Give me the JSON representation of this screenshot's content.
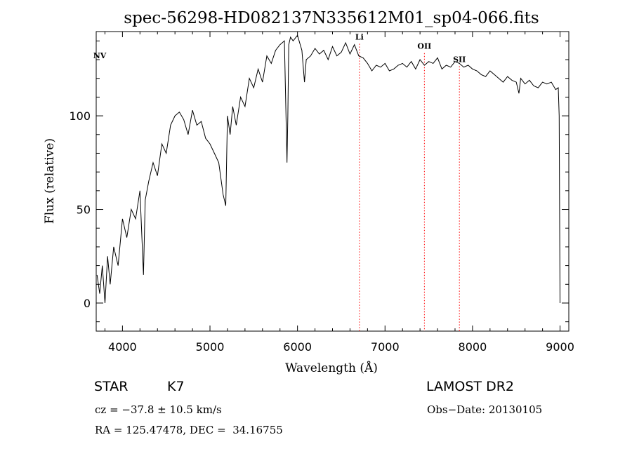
{
  "chart_data": {
    "type": "line",
    "title": "spec-56298-HD082137N335612M01_sp04-066.fits",
    "xlabel": "Wavelength (Å)",
    "ylabel": "Flux (relative)",
    "xlim": [
      3700,
      9100
    ],
    "ylim": [
      -15,
      145
    ],
    "x_ticks": [
      4000,
      5000,
      6000,
      7000,
      8000,
      9000
    ],
    "y_ticks": [
      0,
      50,
      100
    ],
    "grid": false,
    "line_color": "#000000",
    "marker_color": "#ff0000",
    "series": [
      {
        "x": [
          3710,
          3740,
          3770,
          3800,
          3830,
          3860,
          3900,
          3950,
          4000,
          4050,
          4100,
          4150,
          4200,
          4240,
          4260,
          4300,
          4350,
          4400,
          4450,
          4500,
          4550,
          4600,
          4650,
          4700,
          4750,
          4800,
          4850,
          4900,
          4950,
          5000,
          5050,
          5100,
          5150,
          5180,
          5200,
          5230,
          5260,
          5300,
          5350,
          5400,
          5450,
          5500,
          5550,
          5600,
          5650,
          5700,
          5750,
          5800,
          5850,
          5880,
          5890,
          5900,
          5920,
          5950,
          6000,
          6050,
          6080,
          6100,
          6150,
          6200,
          6250,
          6300,
          6350,
          6400,
          6450,
          6500,
          6550,
          6600,
          6650,
          6700,
          6750,
          6800,
          6850,
          6900,
          6950,
          7000,
          7050,
          7100,
          7150,
          7200,
          7250,
          7300,
          7350,
          7400,
          7450,
          7500,
          7550,
          7600,
          7650,
          7700,
          7750,
          7800,
          7850,
          7900,
          7950,
          8000,
          8050,
          8100,
          8150,
          8200,
          8250,
          8300,
          8350,
          8400,
          8450,
          8500,
          8530,
          8550,
          8600,
          8650,
          8700,
          8750,
          8800,
          8850,
          8900,
          8950,
          8980,
          8990,
          9000
        ],
        "y": [
          15,
          5,
          20,
          0,
          25,
          10,
          30,
          20,
          45,
          35,
          50,
          45,
          60,
          15,
          55,
          65,
          75,
          68,
          85,
          80,
          95,
          100,
          102,
          98,
          90,
          103,
          95,
          97,
          88,
          85,
          80,
          75,
          58,
          52,
          100,
          90,
          105,
          95,
          110,
          105,
          120,
          115,
          125,
          118,
          132,
          128,
          135,
          138,
          140,
          75,
          100,
          138,
          142,
          140,
          143,
          135,
          118,
          130,
          132,
          136,
          133,
          135,
          130,
          137,
          132,
          134,
          139,
          133,
          138,
          132,
          131,
          128,
          124,
          127,
          126,
          128,
          124,
          125,
          127,
          128,
          126,
          129,
          125,
          130,
          127,
          129,
          128,
          131,
          125,
          127,
          126,
          129,
          128,
          126,
          127,
          125,
          124,
          122,
          121,
          124,
          122,
          120,
          118,
          121,
          119,
          118,
          112,
          120,
          117,
          119,
          116,
          115,
          118,
          117,
          118,
          114,
          115,
          100,
          0
        ]
      }
    ],
    "lines": [
      {
        "label": "NV",
        "x": 3740,
        "y": 130,
        "marker": false
      },
      {
        "label": "Li",
        "x": 6708,
        "y": 140,
        "marker": true
      },
      {
        "label": "OII",
        "x": 7450,
        "y": 135,
        "marker": true
      },
      {
        "label": "SII",
        "x": 7850,
        "y": 128,
        "marker": true
      }
    ]
  },
  "info": {
    "object_class": "STAR",
    "subclass": "K7",
    "survey": "LAMOST DR2",
    "cz": "cz = −37.8 ± 10.5 km/s",
    "obs_date": "Obs−Date: 20130105",
    "coords": "RA = 125.47478, DEC =  34.16755"
  }
}
